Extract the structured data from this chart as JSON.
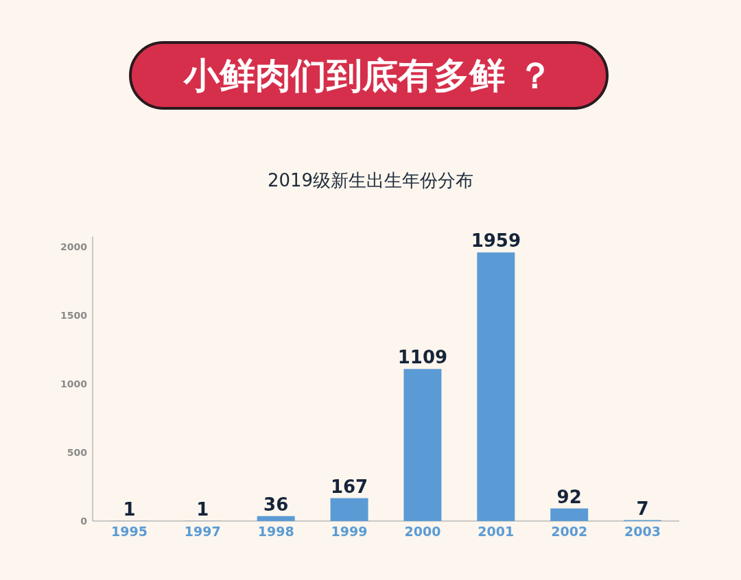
{
  "chart_data": {
    "type": "bar",
    "title": "小鲜肉们到底有多鲜 ？",
    "subtitle": "2019级新生出生年份分布",
    "categories": [
      "1995",
      "1997",
      "1998",
      "1999",
      "2000",
      "2001",
      "2002",
      "2003"
    ],
    "values": [
      1,
      1,
      36,
      167,
      1109,
      1959,
      92,
      7
    ],
    "color": "#5b9bd5",
    "ylim": [
      0,
      2075
    ],
    "yticks": [
      0,
      500,
      1000,
      1500,
      2000
    ],
    "data_labels": true
  }
}
